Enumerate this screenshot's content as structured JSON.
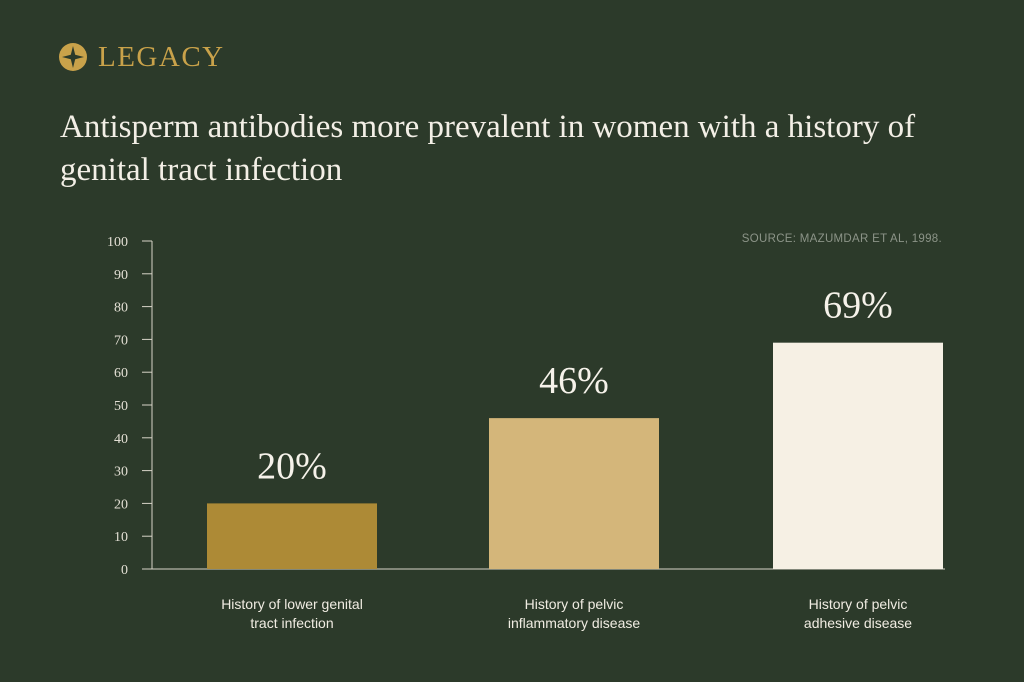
{
  "brand": {
    "name": "LEGACY",
    "logo_icon": "compass-star-icon",
    "color": "#c9a24a"
  },
  "chart_data": {
    "type": "bar",
    "title": "Antisperm antibodies more prevalent in women with a history of genital tract infection",
    "source": "SOURCE: MAZUMDAR ET AL, 1998.",
    "categories": [
      [
        "History of lower genital",
        "tract infection"
      ],
      [
        "History of pelvic",
        "inflammatory disease"
      ],
      [
        "History of pelvic",
        "adhesive disease"
      ]
    ],
    "values": [
      20,
      46,
      69
    ],
    "data_labels": [
      "20%",
      "46%",
      "69%"
    ],
    "bar_colors": [
      "#ad8a36",
      "#d4b67a",
      "#f6f0e4"
    ],
    "ylim": [
      0,
      100
    ],
    "yticks": [
      0,
      10,
      20,
      30,
      40,
      50,
      60,
      70,
      80,
      90,
      100
    ],
    "xlabel": "",
    "ylabel": "",
    "grid": false,
    "legend": "none"
  }
}
